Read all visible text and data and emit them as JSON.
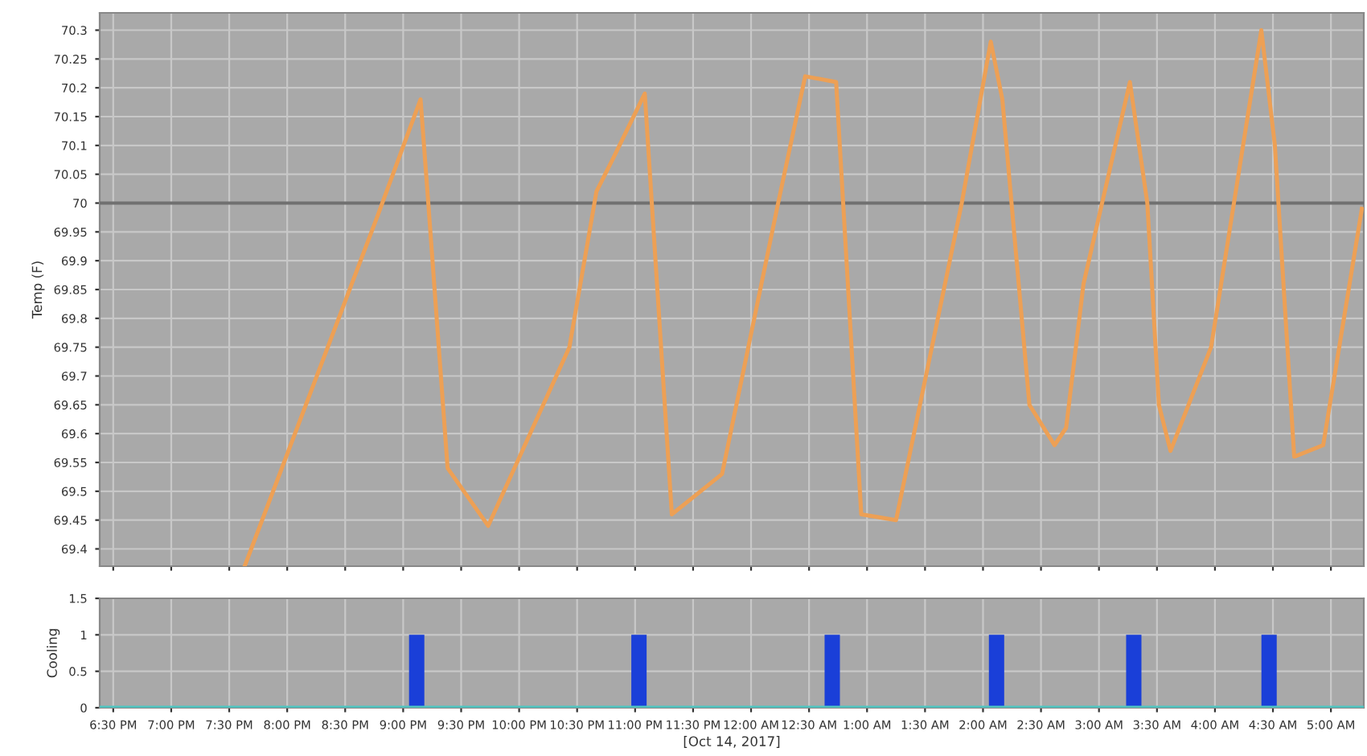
{
  "chart_data": [
    {
      "type": "line",
      "ylabel": "Temp (F)",
      "grid": true,
      "tick_labels": "y",
      "marker": "none",
      "line_style": "solid",
      "xlim": [
        "2017-10-14T18:23",
        "2017-10-15T05:17"
      ],
      "xticks": [
        {
          "value": "2017-10-14T18:30",
          "label": null
        },
        {
          "value": "2017-10-14T19:00",
          "label": null
        },
        {
          "value": "2017-10-14T19:30",
          "label": null
        },
        {
          "value": "2017-10-14T20:00",
          "label": null
        },
        {
          "value": "2017-10-14T20:30",
          "label": null
        },
        {
          "value": "2017-10-14T21:00",
          "label": null
        },
        {
          "value": "2017-10-14T21:30",
          "label": null
        },
        {
          "value": "2017-10-14T22:00",
          "label": null
        },
        {
          "value": "2017-10-14T22:30",
          "label": null
        },
        {
          "value": "2017-10-14T23:00",
          "label": null
        },
        {
          "value": "2017-10-14T23:30",
          "label": null
        },
        {
          "value": "2017-10-15T00:00",
          "label": null
        },
        {
          "value": "2017-10-15T00:30",
          "label": null
        },
        {
          "value": "2017-10-15T01:00",
          "label": null
        },
        {
          "value": "2017-10-15T01:30",
          "label": null
        },
        {
          "value": "2017-10-15T02:00",
          "label": null
        },
        {
          "value": "2017-10-15T02:30",
          "label": null
        },
        {
          "value": "2017-10-15T03:00",
          "label": null
        },
        {
          "value": "2017-10-15T03:30",
          "label": null
        },
        {
          "value": "2017-10-15T04:00",
          "label": null
        },
        {
          "value": "2017-10-15T04:30",
          "label": null
        },
        {
          "value": "2017-10-15T05:00",
          "label": null
        }
      ],
      "ylim": [
        69.37,
        70.33
      ],
      "yticks": [
        69.4,
        69.45,
        69.5,
        69.55,
        69.6,
        69.65,
        69.7,
        69.75,
        69.8,
        69.85,
        69.9,
        69.95,
        70,
        70.05,
        70.1,
        70.15,
        70.2,
        70.25,
        70.3
      ],
      "ref_lines": [
        {
          "axis": "y",
          "value": 70,
          "color": "#707070"
        }
      ],
      "series": [
        {
          "color": "#eda055",
          "x": [
            "2017-10-14T19:38",
            "2017-10-14T20:47",
            "2017-10-14T21:09",
            "2017-10-14T21:13",
            "2017-10-14T21:23",
            "2017-10-14T21:44",
            "2017-10-14T22:26",
            "2017-10-14T22:40",
            "2017-10-14T22:49",
            "2017-10-14T23:05",
            "2017-10-14T23:19",
            "2017-10-14T23:45",
            "2017-10-15T00:14",
            "2017-10-15T00:28",
            "2017-10-15T00:44",
            "2017-10-15T00:57",
            "2017-10-15T01:15",
            "2017-10-15T01:49",
            "2017-10-15T02:04",
            "2017-10-15T02:10",
            "2017-10-15T02:24",
            "2017-10-15T02:37",
            "2017-10-15T02:43",
            "2017-10-15T02:52",
            "2017-10-15T03:16",
            "2017-10-15T03:25",
            "2017-10-15T03:31",
            "2017-10-15T03:37",
            "2017-10-15T03:58",
            "2017-10-15T04:24",
            "2017-10-15T04:31",
            "2017-10-15T04:41",
            "2017-10-15T04:56",
            "2017-10-15T05:16"
          ],
          "values": [
            69.37,
            69.98,
            70.18,
            70.0,
            69.54,
            69.44,
            69.75,
            70.02,
            70.08,
            70.19,
            69.46,
            69.53,
            70.0,
            70.22,
            70.21,
            69.46,
            69.45,
            70.0,
            70.28,
            70.18,
            69.65,
            69.58,
            69.61,
            69.86,
            70.21,
            70.0,
            69.65,
            69.57,
            69.75,
            70.3,
            70.1,
            69.56,
            69.58,
            69.99
          ]
        }
      ]
    },
    {
      "type": "bar",
      "ylabel": "Cooling",
      "xlabel": "[Oct 14, 2017]",
      "grid": true,
      "xlim": [
        "2017-10-14T18:23",
        "2017-10-15T05:17"
      ],
      "xticks": [
        {
          "value": "2017-10-14T18:30",
          "label": "6:30 PM"
        },
        {
          "value": "2017-10-14T19:00",
          "label": "7:00 PM"
        },
        {
          "value": "2017-10-14T19:30",
          "label": "7:30 PM"
        },
        {
          "value": "2017-10-14T20:00",
          "label": "8:00 PM"
        },
        {
          "value": "2017-10-14T20:30",
          "label": "8:30 PM"
        },
        {
          "value": "2017-10-14T21:00",
          "label": "9:00 PM"
        },
        {
          "value": "2017-10-14T21:30",
          "label": "9:30 PM"
        },
        {
          "value": "2017-10-14T22:00",
          "label": "10:00 PM"
        },
        {
          "value": "2017-10-14T22:30",
          "label": "10:30 PM"
        },
        {
          "value": "2017-10-14T23:00",
          "label": "11:00 PM"
        },
        {
          "value": "2017-10-14T23:30",
          "label": "11:30 PM"
        },
        {
          "value": "2017-10-15T00:00",
          "label": "12:00 AM"
        },
        {
          "value": "2017-10-15T00:30",
          "label": "12:30 AM"
        },
        {
          "value": "2017-10-15T01:00",
          "label": "1:00 AM"
        },
        {
          "value": "2017-10-15T01:30",
          "label": "1:30 AM"
        },
        {
          "value": "2017-10-15T02:00",
          "label": "2:00 AM"
        },
        {
          "value": "2017-10-15T02:30",
          "label": "2:30 AM"
        },
        {
          "value": "2017-10-15T03:00",
          "label": "3:00 AM"
        },
        {
          "value": "2017-10-15T03:30",
          "label": "3:30 AM"
        },
        {
          "value": "2017-10-15T04:00",
          "label": "4:00 AM"
        },
        {
          "value": "2017-10-15T04:30",
          "label": "4:30 AM"
        },
        {
          "value": "2017-10-15T05:00",
          "label": "5:00 AM"
        }
      ],
      "ylim": [
        0,
        1.5
      ],
      "yticks": [
        0,
        0.5,
        1,
        1.5
      ],
      "series": [
        {
          "color": "#1a3fd8",
          "x": [
            "2017-10-14T21:07",
            "2017-10-14T23:02",
            "2017-10-15T00:42",
            "2017-10-15T02:07",
            "2017-10-15T03:18",
            "2017-10-15T04:28"
          ],
          "values": [
            1,
            1,
            1,
            1,
            1,
            1
          ]
        },
        {
          "type": "line",
          "color": "#4fc4c0",
          "x": [
            "2017-10-14T18:23",
            "2017-10-15T05:17"
          ],
          "values": [
            0,
            0
          ]
        }
      ]
    }
  ]
}
